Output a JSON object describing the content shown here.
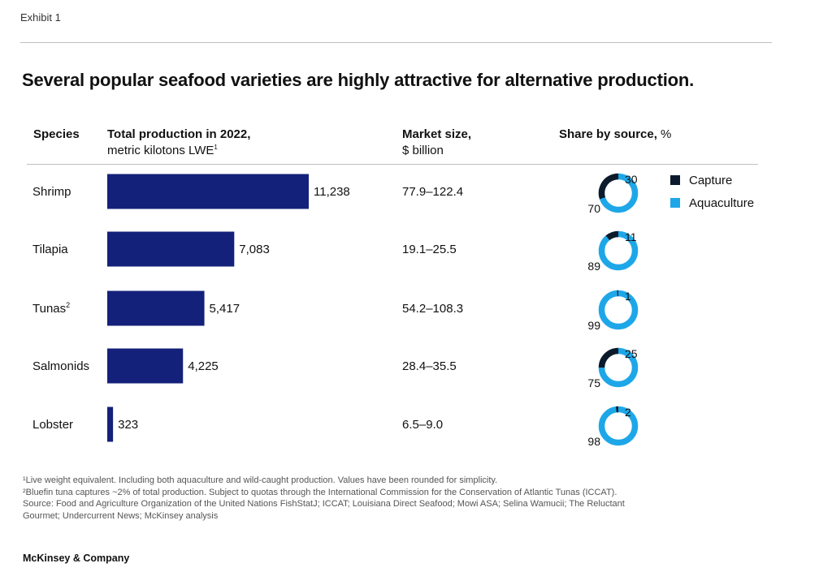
{
  "exhibit_label": "Exhibit 1",
  "headers": {
    "species": "Species",
    "production_bold": "Total production in 2022,",
    "production_sub": "metric kilotons LWE",
    "production_sup": "1",
    "market_bold": "Market size,",
    "market_sub": "$ billion",
    "share_bold": "Share by source,",
    "share_unit": " %"
  },
  "legend": [
    {
      "name": "Capture",
      "color": "#0b1b2b"
    },
    {
      "name": "Aquaculture",
      "color": "#1ea7e8"
    }
  ],
  "bar_color": "#14217a",
  "chart_data": {
    "type": "bar",
    "title": "Several popular seafood varieties are highly attractive for alternative production.",
    "categories": [
      "Shrimp",
      "Tilapia",
      "Tunas",
      "Salmonids",
      "Lobster"
    ],
    "category_sup": [
      "",
      "",
      "2",
      "",
      ""
    ],
    "values": [
      11238,
      7083,
      5417,
      4225,
      323
    ],
    "value_labels": [
      "11,238",
      "7,083",
      "5,417",
      "4,225",
      "323"
    ],
    "market_size": [
      "77.9–122.4",
      "19.1–25.5",
      "54.2–108.3",
      "28.4–35.5",
      "6.5–9.0"
    ],
    "share_by_source": {
      "series": [
        {
          "name": "Capture",
          "values": [
            30,
            11,
            1,
            25,
            2
          ]
        },
        {
          "name": "Aquaculture",
          "values": [
            70,
            89,
            99,
            75,
            98
          ]
        }
      ]
    },
    "xlim": [
      0,
      11238
    ]
  },
  "footnotes": [
    "¹Live weight equivalent. Including both aquaculture and wild-caught production. Values have been rounded for simplicity.",
    "²Bluefin tuna captures ~2% of total production. Subject to quotas through the International Commission for the Conservation of Atlantic Tunas (ICCAT).",
    " Source: Food and Agriculture Organization of the United Nations FishStatJ; ICCAT; Louisiana Direct Seafood; Mowi ASA; Selina Wamucii; The Reluctant",
    " Gourmet; Undercurrent News; McKinsey analysis"
  ],
  "brand": "McKinsey & Company"
}
